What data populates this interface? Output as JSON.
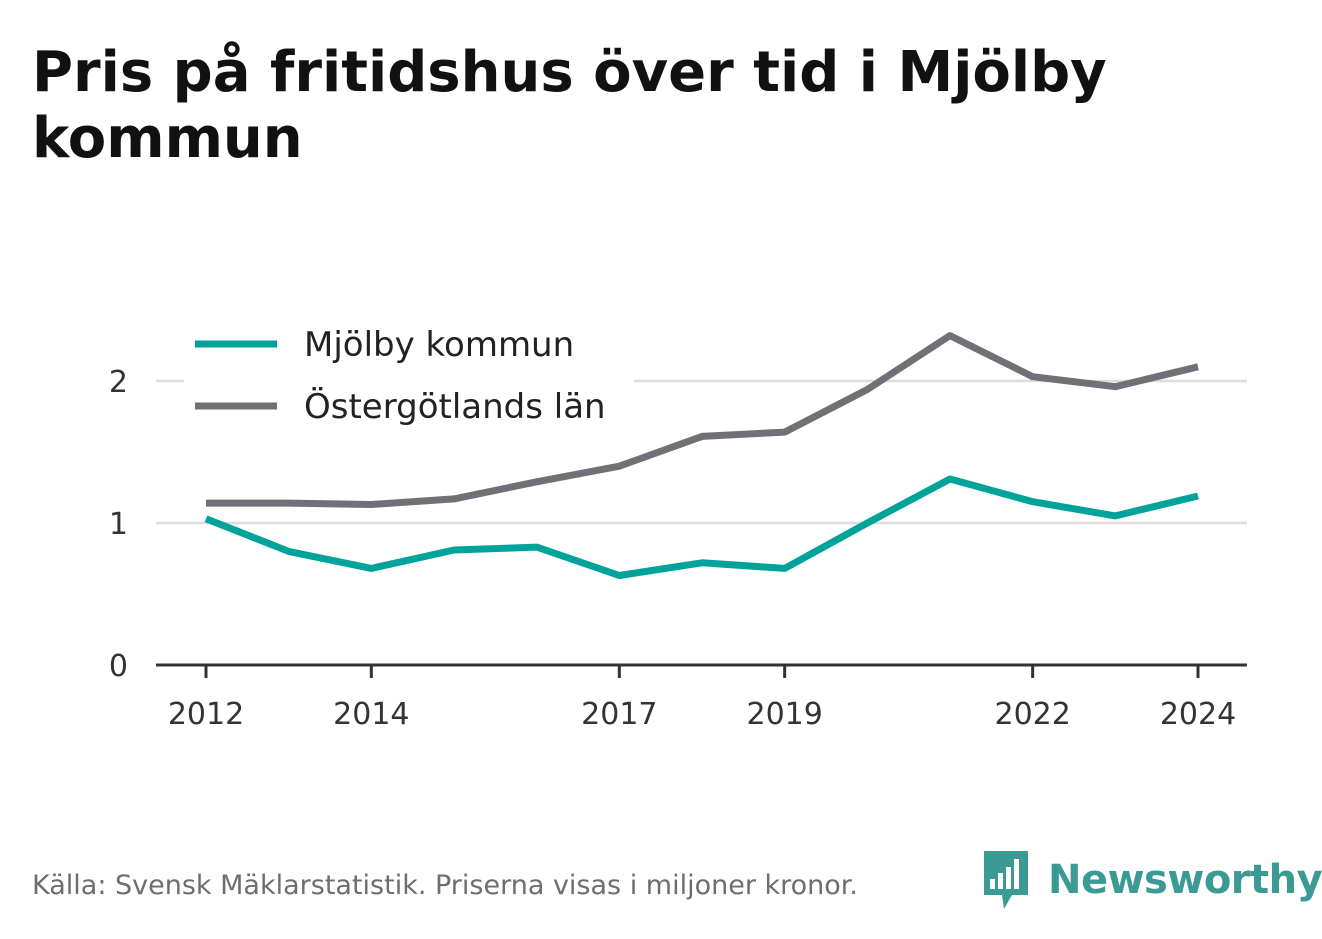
{
  "title": "Pris på fritidshus över tid i Mjölby kommun",
  "footer": {
    "source": "Källa: Svensk Mäklarstatistik. Priserna visas i miljoner kronor.",
    "brand": "Newsworthy"
  },
  "icons": {
    "brand_logo": "bar-chart-speech-bubble-icon"
  },
  "colors": {
    "mjolby": "#00a39a",
    "ostergotland": "#717076",
    "grid": "#dddddd",
    "axis": "#333333",
    "text": "#333333"
  },
  "chart_data": {
    "type": "line",
    "x": [
      2012,
      2013,
      2014,
      2015,
      2016,
      2017,
      2018,
      2019,
      2020,
      2021,
      2022,
      2023,
      2024
    ],
    "x_tick_labels": [
      "2012",
      "2014",
      "2017",
      "2019",
      "2022",
      "2024"
    ],
    "y_tick_labels": [
      "0",
      "1",
      "2"
    ],
    "ylim": [
      0,
      2.5
    ],
    "grid": true,
    "legend_position": "top-left",
    "series": [
      {
        "name": "Mjölby kommun",
        "color": "#00a39a",
        "values": [
          1.03,
          0.8,
          0.68,
          0.81,
          0.83,
          0.63,
          0.72,
          0.68,
          1.0,
          1.31,
          1.15,
          1.05,
          1.19
        ]
      },
      {
        "name": "Östergötlands län",
        "color": "#717076",
        "values": [
          1.14,
          1.14,
          1.13,
          1.17,
          1.29,
          1.4,
          1.61,
          1.64,
          1.94,
          2.32,
          2.03,
          1.96,
          2.1
        ]
      }
    ]
  }
}
